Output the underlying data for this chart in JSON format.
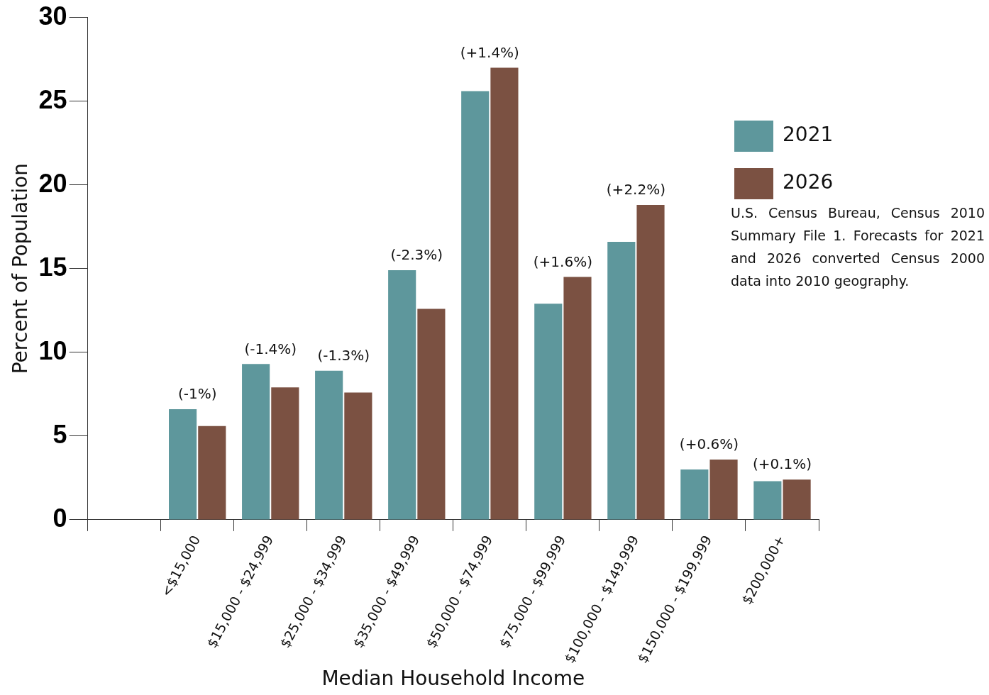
{
  "chart_data": {
    "type": "bar",
    "xlabel": "Median Household Income",
    "ylabel": "Percent of Population",
    "categories": [
      null,
      "<$15,000",
      "$15,000 - $24,999",
      "$25,000 - $34,999",
      "$35,000 - $49,999",
      "$50,000 - $74,999",
      "$75,000 - $99,999",
      "$100,000 - $149,999",
      "$150,000 - $199,999",
      "$200,000+"
    ],
    "series": [
      {
        "name": "2021",
        "color": "#5e979c",
        "values": [
          null,
          6.6,
          9.3,
          8.9,
          14.9,
          25.6,
          12.9,
          16.6,
          3.0,
          2.3
        ]
      },
      {
        "name": "2026",
        "color": "#7b5142",
        "values": [
          null,
          5.6,
          7.9,
          7.6,
          12.6,
          27.0,
          14.5,
          18.8,
          3.6,
          2.4
        ]
      }
    ],
    "ylim": [
      0,
      30
    ],
    "yticks": [
      0,
      5,
      10,
      15,
      20,
      25,
      30
    ],
    "grid": false,
    "legend": "right",
    "annotations": [
      {
        "text": "(-1%)",
        "x": "<$15,000",
        "y": 6.6
      },
      {
        "text": "(-1.4%)",
        "x": "$15,000 - $24,999",
        "y": 9.3
      },
      {
        "text": "(-1.3%)",
        "x": "$25,000 - $34,999",
        "y": 8.9
      },
      {
        "text": "(-2.3%)",
        "x": "$35,000 - $49,999",
        "y": 14.9
      },
      {
        "text": "(+1.4%)",
        "x": "$50,000 - $74,999",
        "y": 27.0
      },
      {
        "text": "(+1.6%)",
        "x": "$75,000 - $99,999",
        "y": 14.5
      },
      {
        "text": "(+2.2%)",
        "x": "$100,000 - $149,999",
        "y": 18.8
      },
      {
        "text": "(+0.6%)",
        "x": "$150,000 - $199,999",
        "y": 3.6
      },
      {
        "text": "(+0.1%)",
        "x": "$200,000+",
        "y": 2.4
      },
      "U.S. Census Bureau, Census 2010 Summary File 1. Forecasts for 2021 and 2026 converted Census 2000 data into 2010 geography."
    ]
  }
}
